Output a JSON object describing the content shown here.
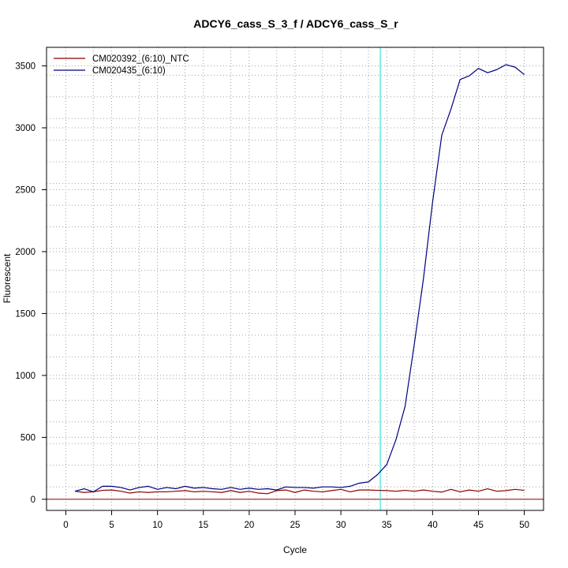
{
  "chart_data": {
    "type": "line",
    "title": "ADCY6_cass_S_3_f / ADCY6_cass_S_r",
    "xlabel": "Cycle",
    "ylabel": "Fluorescent",
    "xlim": [
      -2.1,
      52.1
    ],
    "ylim": [
      -90,
      3650
    ],
    "x_ticks": [
      0,
      5,
      10,
      15,
      20,
      25,
      30,
      35,
      40,
      45,
      50
    ],
    "x_tick_labels": [
      "0",
      "5",
      "10",
      "15",
      "20",
      "25",
      "30",
      "35",
      "40",
      "45",
      "50"
    ],
    "y_ticks": [
      0,
      500,
      1000,
      1500,
      2000,
      2500,
      3000,
      3500
    ],
    "y_tick_labels": [
      "0",
      "500",
      "1000",
      "1500",
      "2000",
      "2500",
      "3000",
      "3500"
    ],
    "x_gridlines": [
      3,
      8,
      13,
      18,
      23,
      28,
      33,
      38,
      43,
      48
    ],
    "y_gridlines": [
      100,
      275,
      450,
      625,
      800,
      975,
      1150,
      1325,
      1500,
      1675,
      1850,
      2025,
      2200,
      2375,
      2550,
      2725,
      2900,
      3075,
      3250,
      3425
    ],
    "grid": true,
    "legend_position": "top-left",
    "threshold_x": 34.3,
    "threshold_color": "#40e0e0",
    "baseline_y": 0,
    "baseline_color": "#8b0000",
    "x": [
      1,
      2,
      3,
      4,
      5,
      6,
      7,
      8,
      9,
      10,
      11,
      12,
      13,
      14,
      15,
      16,
      17,
      18,
      19,
      20,
      21,
      22,
      23,
      24,
      25,
      26,
      27,
      28,
      29,
      30,
      31,
      32,
      33,
      34,
      35,
      36,
      37,
      38,
      39,
      40,
      41,
      42,
      43,
      44,
      45,
      46,
      47,
      48,
      49,
      50
    ],
    "series": [
      {
        "name": "CM020392_(6:10)_NTC",
        "color": "#8b0000",
        "values": [
          65,
          55,
          60,
          72,
          75,
          65,
          50,
          60,
          55,
          60,
          60,
          65,
          70,
          60,
          65,
          60,
          55,
          70,
          55,
          65,
          50,
          45,
          70,
          75,
          55,
          75,
          65,
          60,
          70,
          80,
          60,
          75,
          75,
          72,
          70,
          65,
          72,
          65,
          75,
          65,
          58,
          80,
          60,
          75,
          65,
          85,
          65,
          70,
          80,
          72
        ]
      },
      {
        "name": "CM020435_(6:10)",
        "color": "#000080",
        "values": [
          65,
          85,
          60,
          105,
          105,
          95,
          75,
          95,
          105,
          80,
          95,
          85,
          105,
          90,
          95,
          85,
          80,
          95,
          80,
          90,
          80,
          85,
          75,
          100,
          95,
          95,
          90,
          100,
          100,
          95,
          105,
          130,
          140,
          200,
          280,
          480,
          750,
          1250,
          1780,
          2400,
          2940,
          3150,
          3390,
          3420,
          3480,
          3445,
          3470,
          3510,
          3490,
          3430
        ]
      }
    ]
  }
}
